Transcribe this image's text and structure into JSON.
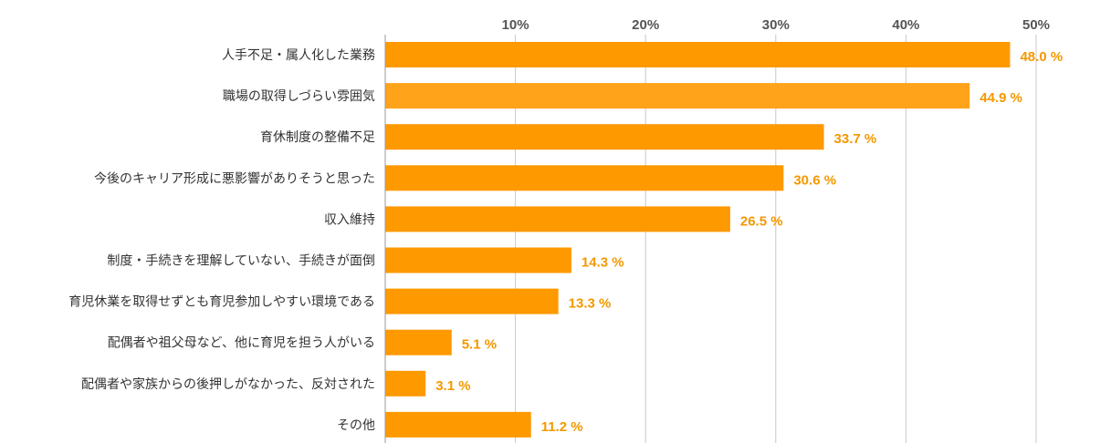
{
  "chart_data": {
    "type": "bar",
    "orientation": "horizontal",
    "categories": [
      "人手不足・属人化した業務",
      "職場の取得しづらい雰囲気",
      "育休制度の整備不足",
      "今後のキャリア形成に悪影響がありそうと思った",
      "収入維持",
      "制度・手続きを理解していない、手続きが面倒",
      "育児休業を取得せずとも育児参加しやすい環境である",
      "配偶者や祖父母など、他に育児を担う人がいる",
      "配偶者や家族からの後押しがなかった、反対された",
      "その他"
    ],
    "values": [
      48.0,
      44.9,
      33.7,
      30.6,
      26.5,
      14.3,
      13.3,
      5.1,
      3.1,
      11.2
    ],
    "value_labels": [
      "48.0 %",
      "44.9 %",
      "33.7 %",
      "30.6 %",
      "26.5 %",
      "14.3 %",
      "13.3 %",
      "5.1 %",
      "3.1 %",
      "11.2 %"
    ],
    "title": "",
    "xlabel": "",
    "ylabel": "",
    "xlim": [
      0,
      50
    ],
    "x_ticks": [
      10,
      20,
      30,
      40,
      50
    ],
    "x_tick_labels": [
      "10%",
      "20%",
      "30%",
      "40%",
      "50%"
    ],
    "x_axis_position": "top",
    "grid": true,
    "colors": {
      "bar": "#FF9900",
      "bar_alt": "#FFA31A",
      "value_label": "#F39800",
      "grid": "#C8C8C8",
      "axis": "#999999",
      "category_text": "#333333",
      "tick_text": "#555555"
    }
  }
}
